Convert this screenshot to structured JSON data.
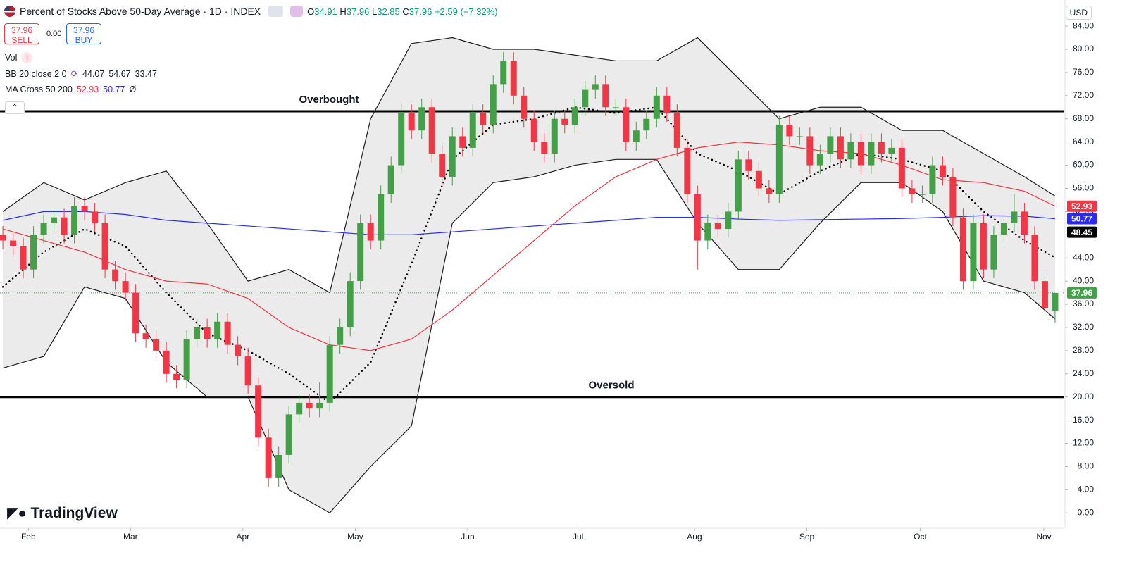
{
  "chart_data": {
    "type": "candlestick",
    "title": "Percent of Stocks Above 50-Day Average · 1D · INDEX",
    "ohlc_labels": [
      "O",
      "H",
      "L",
      "C"
    ],
    "change": "+2.59 (+7.32%)",
    "currency": "USD",
    "sell_label": "SELL",
    "buy_label": "BUY",
    "spread": "0.00",
    "volume_label": "Vol",
    "bb_label": "BB 20 close 2 0",
    "ma_label": "MA Cross 50 200",
    "ma_extra": "Ø",
    "brand": "TradingView",
    "up_color": "#43a047",
    "down_color": "#f23645",
    "xlim": [
      -0.28,
      103.9
    ],
    "xticks": [
      {
        "value": 2.5,
        "label": "Feb"
      },
      {
        "value": 12.5,
        "label": "Mar"
      },
      {
        "value": 23.5,
        "label": "Apr"
      },
      {
        "value": 34.5,
        "label": "May"
      },
      {
        "value": 45.5,
        "label": "Jun"
      },
      {
        "value": 56.3,
        "label": "Jul"
      },
      {
        "value": 67.7,
        "label": "Aug"
      },
      {
        "value": 78.7,
        "label": "Sep"
      },
      {
        "value": 89.8,
        "label": "Oct"
      },
      {
        "value": 101.9,
        "label": "Nov"
      }
    ],
    "ylim": [
      -2.4,
      87.9
    ],
    "yticks": [
      {
        "value": 0,
        "label": "0.00"
      },
      {
        "value": 4,
        "label": "4.00"
      },
      {
        "value": 8,
        "label": "8.00"
      },
      {
        "value": 12,
        "label": "12.00"
      },
      {
        "value": 16,
        "label": "16.00"
      },
      {
        "value": 20,
        "label": "20.00"
      },
      {
        "value": 24,
        "label": "24.00"
      },
      {
        "value": 28,
        "label": "28.00"
      },
      {
        "value": 32,
        "label": "32.00"
      },
      {
        "value": 36,
        "label": "36.00"
      },
      {
        "value": 40,
        "label": "40.00"
      },
      {
        "value": 44,
        "label": "44.00"
      },
      {
        "value": 48,
        "label": "48.00"
      },
      {
        "value": 52,
        "label": "52.00"
      },
      {
        "value": 56,
        "label": "56.00"
      },
      {
        "value": 60,
        "label": "60.00"
      },
      {
        "value": 64,
        "label": "64.00"
      },
      {
        "value": 68,
        "label": "68.00"
      },
      {
        "value": 72,
        "label": "72.00"
      },
      {
        "value": 76,
        "label": "76.00"
      },
      {
        "value": 80,
        "label": "80.00"
      },
      {
        "value": 84,
        "label": "84.00"
      }
    ],
    "grid": false,
    "ohlc": [
      [
        48,
        49.5,
        45.5,
        47
      ],
      [
        47,
        48.5,
        44.5,
        46
      ],
      [
        46,
        47.5,
        40.5,
        42
      ],
      [
        42,
        49.5,
        40.5,
        48
      ],
      [
        48,
        51.5,
        46.5,
        50
      ],
      [
        50,
        52.5,
        48.5,
        51
      ],
      [
        51,
        52.5,
        46.5,
        48
      ],
      [
        48,
        54.5,
        46.5,
        53
      ],
      [
        53,
        54.5,
        50.5,
        52
      ],
      [
        52,
        53.5,
        48.5,
        50
      ],
      [
        50,
        51.5,
        40.5,
        42
      ],
      [
        42,
        43.5,
        38.5,
        40
      ],
      [
        40,
        41.5,
        36.5,
        38
      ],
      [
        38,
        39.5,
        29.5,
        31
      ],
      [
        31,
        32.5,
        28.5,
        30
      ],
      [
        30,
        31.5,
        26.5,
        28
      ],
      [
        28,
        29.5,
        22.5,
        24
      ],
      [
        24,
        25.5,
        21.5,
        23
      ],
      [
        23,
        31.5,
        21.5,
        30
      ],
      [
        30,
        33.5,
        28.5,
        32
      ],
      [
        32,
        33.5,
        28.5,
        30
      ],
      [
        30,
        34.5,
        28.5,
        33
      ],
      [
        33,
        34.5,
        27.5,
        29
      ],
      [
        29,
        30.5,
        25.5,
        27
      ],
      [
        27,
        28.5,
        20.5,
        22
      ],
      [
        22,
        23.5,
        11.5,
        13
      ],
      [
        13,
        14.5,
        4.5,
        6
      ],
      [
        6,
        11.5,
        4.5,
        10
      ],
      [
        10,
        18.5,
        8.5,
        17
      ],
      [
        17,
        20.5,
        15.5,
        19
      ],
      [
        19,
        20.5,
        16.5,
        18
      ],
      [
        18,
        22.5,
        16.5,
        19
      ],
      [
        19,
        30.5,
        17.5,
        29
      ],
      [
        29,
        33.5,
        27.5,
        32
      ],
      [
        32,
        41.5,
        30.5,
        40
      ],
      [
        40,
        51.5,
        38.5,
        50
      ],
      [
        50,
        51.5,
        45.5,
        47
      ],
      [
        47,
        56.5,
        45.5,
        55
      ],
      [
        55,
        61.5,
        53.5,
        60
      ],
      [
        60,
        70.5,
        58.5,
        69
      ],
      [
        69,
        70.5,
        64.5,
        66
      ],
      [
        66,
        71.5,
        64.5,
        70
      ],
      [
        70,
        71.5,
        60.5,
        62
      ],
      [
        62,
        63.5,
        56.5,
        58
      ],
      [
        58,
        66.5,
        56.5,
        65
      ],
      [
        65,
        66.5,
        61.5,
        63
      ],
      [
        63,
        70.5,
        61.5,
        69
      ],
      [
        69,
        70.5,
        65.5,
        67
      ],
      [
        67,
        75.5,
        65.5,
        74
      ],
      [
        74,
        79.5,
        72.5,
        78
      ],
      [
        78,
        79.5,
        70.5,
        72
      ],
      [
        72,
        73.5,
        66.5,
        68
      ],
      [
        68,
        69.5,
        62.5,
        64
      ],
      [
        64,
        65.5,
        60.5,
        62
      ],
      [
        62,
        69.5,
        60.5,
        68
      ],
      [
        68,
        69.5,
        65.5,
        67
      ],
      [
        67,
        71.5,
        65.5,
        70
      ],
      [
        70,
        74.5,
        68.5,
        73
      ],
      [
        73,
        75.5,
        71.5,
        74
      ],
      [
        74,
        75.5,
        68.5,
        70
      ],
      [
        70,
        71.5,
        68.5,
        70
      ],
      [
        70,
        71.5,
        62.5,
        64
      ],
      [
        64,
        67.5,
        62.5,
        66
      ],
      [
        66,
        69.5,
        64.5,
        68
      ],
      [
        68,
        73.5,
        66.5,
        72
      ],
      [
        72,
        73.5,
        67.5,
        69
      ],
      [
        69,
        70.5,
        61.5,
        63
      ],
      [
        63,
        64.5,
        53.5,
        55
      ],
      [
        55,
        56.5,
        42,
        47
      ],
      [
        47,
        51.5,
        45.5,
        50
      ],
      [
        50,
        51.5,
        47.5,
        49
      ],
      [
        49,
        53.5,
        47.5,
        52
      ],
      [
        52,
        62.5,
        50.5,
        61
      ],
      [
        61,
        62.5,
        57.5,
        59
      ],
      [
        59,
        60.5,
        54.5,
        56
      ],
      [
        56,
        57.5,
        53.5,
        55
      ],
      [
        55,
        68.5,
        53.5,
        67
      ],
      [
        67,
        68.5,
        63.5,
        65
      ],
      [
        65,
        66.5,
        63.5,
        65
      ],
      [
        65,
        66.5,
        58.5,
        60
      ],
      [
        60,
        63.5,
        58.5,
        62
      ],
      [
        62,
        66.5,
        60.5,
        65
      ],
      [
        65,
        66.5,
        59.5,
        61
      ],
      [
        61,
        65.5,
        59.5,
        64
      ],
      [
        64,
        65.5,
        58.5,
        60
      ],
      [
        60,
        65.5,
        58.5,
        64
      ],
      [
        64,
        65.5,
        60.5,
        62
      ],
      [
        62,
        64.5,
        60.5,
        63
      ],
      [
        63,
        64.5,
        54.5,
        56
      ],
      [
        56,
        57.5,
        53.5,
        55
      ],
      [
        55,
        56.5,
        53.5,
        55
      ],
      [
        55,
        61.5,
        53.5,
        60
      ],
      [
        60,
        61.5,
        56.5,
        58
      ],
      [
        58,
        59.5,
        49.5,
        51
      ],
      [
        51,
        52.5,
        38.5,
        40
      ],
      [
        40,
        51.5,
        38.5,
        50
      ],
      [
        50,
        51.5,
        40.5,
        42
      ],
      [
        42,
        49.5,
        40.5,
        48
      ],
      [
        48,
        51.5,
        46.5,
        50
      ],
      [
        50,
        55,
        48.5,
        52
      ],
      [
        52,
        53.5,
        46.5,
        48
      ],
      [
        48,
        49.5,
        38.5,
        40
      ],
      [
        40,
        41.5,
        34,
        35.37
      ],
      [
        34.91,
        37.96,
        32.85,
        37.96
      ]
    ],
    "line_x": [
      0,
      4,
      8,
      12,
      16,
      20,
      24,
      28,
      32,
      36,
      40,
      44,
      48,
      52,
      56,
      60,
      64,
      68,
      72,
      76,
      80,
      84,
      88,
      92,
      96,
      100,
      103
    ],
    "series": [
      {
        "color": "#000000",
        "dash": true,
        "values": [
          39,
          45,
          49,
          46,
          38,
          31,
          28,
          24,
          19,
          26,
          43,
          61,
          67,
          68,
          70,
          69,
          70,
          62,
          59,
          55,
          59,
          62,
          61,
          59,
          52,
          47,
          44.07
        ]
      },
      {
        "color": "#1e1e1e",
        "dash": false,
        "values": [
          52,
          57,
          54,
          57,
          59,
          50,
          40,
          42,
          38,
          68,
          81,
          82,
          80,
          80,
          79,
          78,
          78,
          82,
          75,
          68,
          70,
          70,
          66,
          66,
          62,
          58,
          54.67
        ]
      },
      {
        "color": "#1e1e1e",
        "dash": false,
        "values": [
          25,
          27,
          39,
          37,
          26,
          20,
          20,
          4,
          0,
          8,
          15,
          50,
          57,
          58,
          60,
          61,
          61,
          50,
          42,
          42,
          50,
          57,
          57,
          52,
          40,
          38,
          33.47
        ]
      },
      {
        "color": "#f23645",
        "dash": false,
        "values": [
          49,
          47,
          45,
          42,
          40,
          39.5,
          37,
          32,
          29,
          28,
          30,
          35,
          41,
          47,
          53,
          58,
          61,
          63,
          64,
          63.5,
          62.5,
          62,
          60,
          57.5,
          57,
          55.5,
          52.93
        ]
      },
      {
        "color": "#2a2aff",
        "dash": false,
        "values": [
          50.5,
          52,
          52,
          51.5,
          50.5,
          50,
          49.5,
          49,
          48.5,
          48,
          48,
          48.5,
          49,
          49.5,
          50,
          50.5,
          51,
          51,
          50.7,
          50.5,
          50.6,
          50.7,
          50.8,
          51,
          51.3,
          51.2,
          50.77
        ]
      }
    ],
    "band_fill": "#ebebeb",
    "reference_lines": [
      {
        "value": 69.3,
        "label": "Overbought"
      },
      {
        "value": 20,
        "label": "Oversold"
      }
    ],
    "marker_value": 48.45
  }
}
